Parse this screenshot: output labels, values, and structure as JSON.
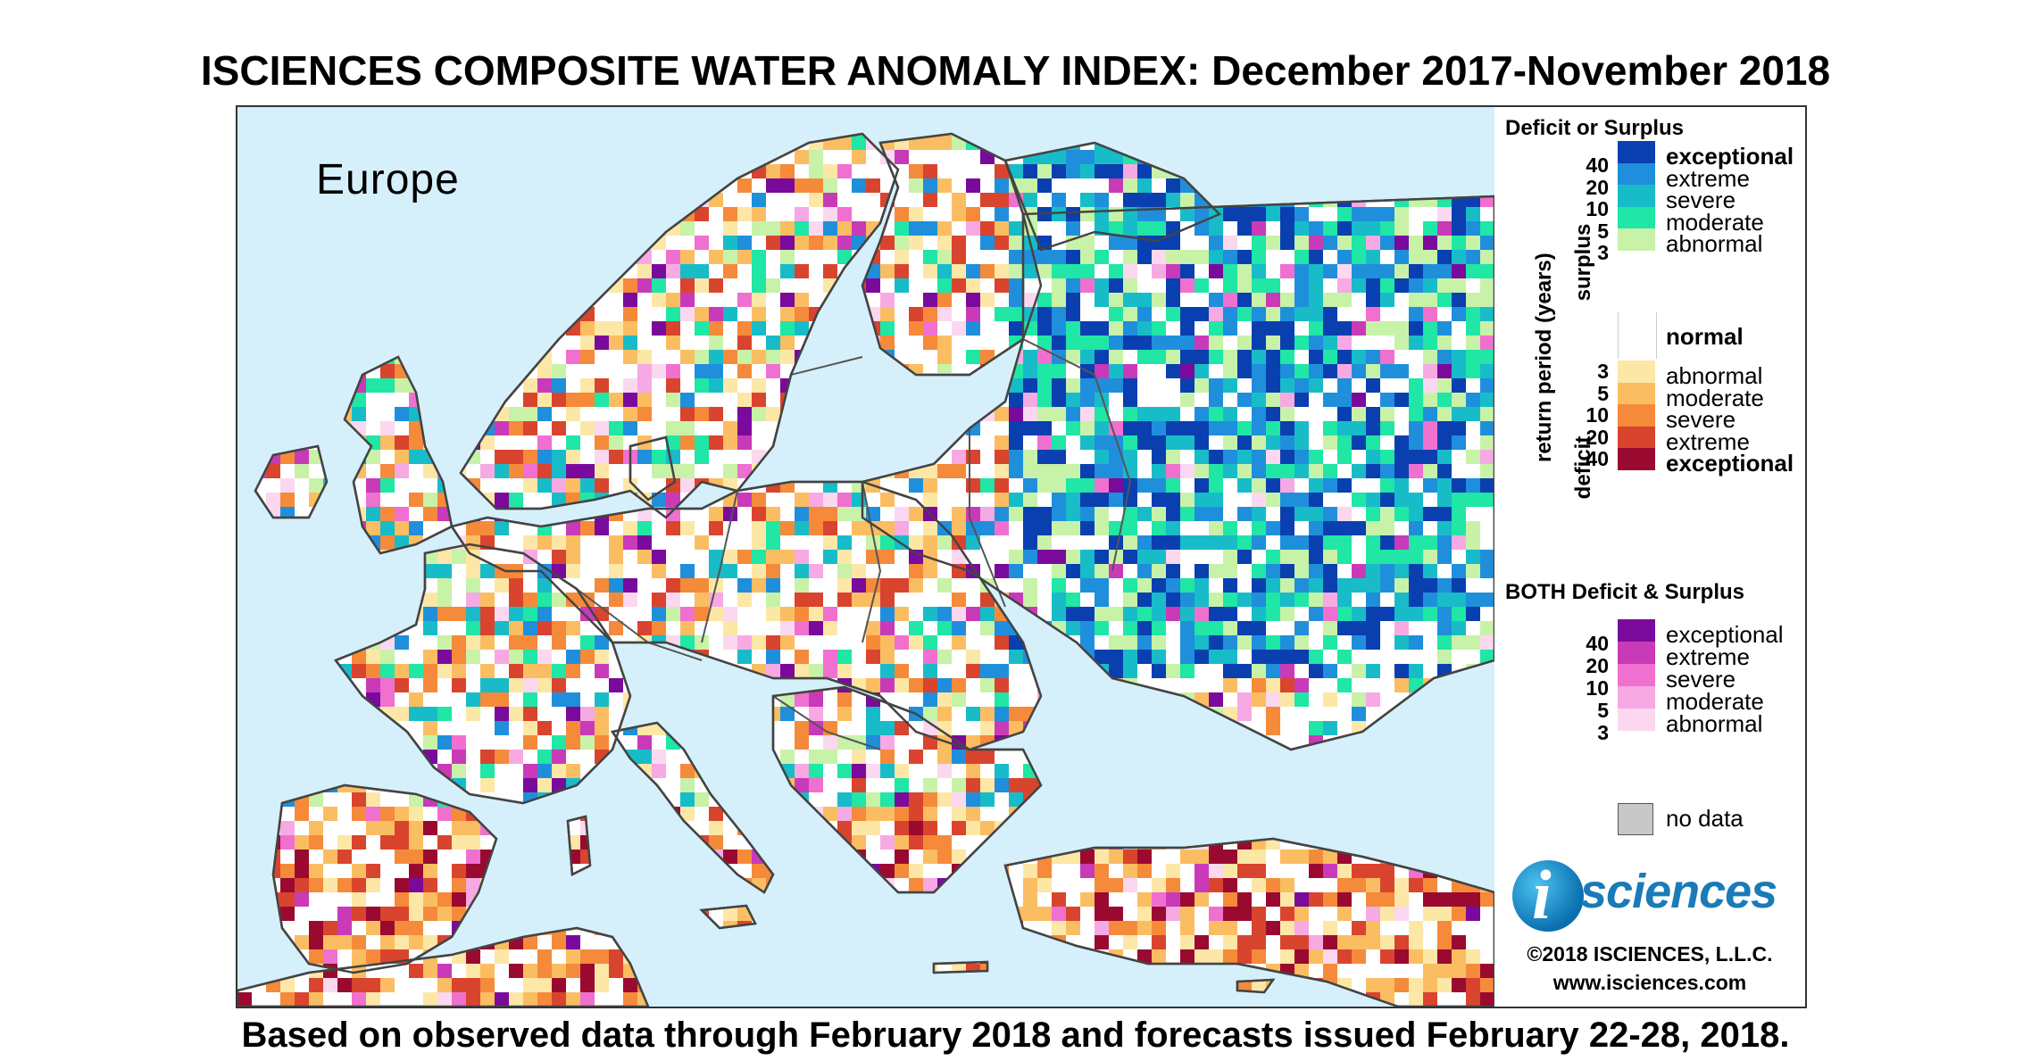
{
  "title": "ISCIENCES COMPOSITE WATER ANOMALY INDEX: December 2017-November 2018",
  "footer": "Based on observed data through February 2018 and forecasts issued February 22-28, 2018.",
  "map": {
    "region_label": "Europe"
  },
  "legend": {
    "deficit_or_surplus_heading": "Deficit or Surplus",
    "axis_label": "return period (years)",
    "surplus_label": "surplus",
    "deficit_label": "deficit",
    "surplus_items": [
      {
        "label": "exceptional",
        "color": "#0a3fb0",
        "bold": true
      },
      {
        "label": "extreme",
        "color": "#1f8fdc",
        "bold": false
      },
      {
        "label": "severe",
        "color": "#18bcc8",
        "bold": false
      },
      {
        "label": "moderate",
        "color": "#20e6a6",
        "bold": false
      },
      {
        "label": "abnormal",
        "color": "#c8f2a8",
        "bold": false
      }
    ],
    "surplus_ticks": [
      "40",
      "20",
      "10",
      "5",
      "3"
    ],
    "normal_label": "normal",
    "deficit_items": [
      {
        "label": "abnormal",
        "color": "#fde7a6",
        "bold": false
      },
      {
        "label": "moderate",
        "color": "#fbbd62",
        "bold": false
      },
      {
        "label": "severe",
        "color": "#f58a3a",
        "bold": false
      },
      {
        "label": "extreme",
        "color": "#d9442e",
        "bold": false
      },
      {
        "label": "exceptional",
        "color": "#9a0a30",
        "bold": true
      }
    ],
    "deficit_ticks": [
      "3",
      "5",
      "10",
      "20",
      "40"
    ],
    "both_heading": "BOTH Deficit & Surplus",
    "both_items": [
      {
        "label": "exceptional",
        "color": "#7a0a9c"
      },
      {
        "label": "extreme",
        "color": "#c93ab8"
      },
      {
        "label": "severe",
        "color": "#f070cf"
      },
      {
        "label": "moderate",
        "color": "#f7a9e4"
      },
      {
        "label": "abnormal",
        "color": "#fbd8f0"
      }
    ],
    "both_ticks": [
      "40",
      "20",
      "10",
      "5",
      "3"
    ],
    "no_data_label": "no data",
    "logo_text": "sciences",
    "logo_letter": "i",
    "copyright": "©2018 ISCIENCES, L.L.C.",
    "website": "www.isciences.com"
  }
}
